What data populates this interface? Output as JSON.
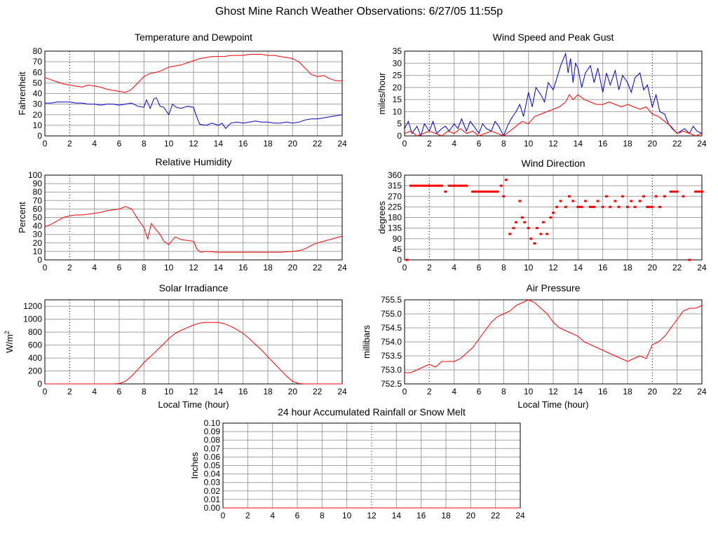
{
  "page_title": "Ghost Mine Ranch Weather Observations: 6/27/05 11:55p",
  "colors": {
    "red": "#ff0000",
    "blue": "#0000cc",
    "grid": "#a0a0a0",
    "axis": "#000000"
  },
  "chart_data": [
    {
      "id": "temp",
      "type": "line",
      "title": "Temperature and Dewpoint",
      "ylabel": "Fahrenheit",
      "xlabel": "",
      "xlim": [
        0,
        24
      ],
      "ylim": [
        0,
        80
      ],
      "xticks": [
        0,
        2,
        4,
        6,
        8,
        10,
        12,
        14,
        16,
        18,
        20,
        22,
        24
      ],
      "yticks": [
        0,
        10,
        20,
        30,
        40,
        50,
        60,
        70,
        80
      ],
      "grid": true,
      "series": [
        {
          "color": "#ff0000",
          "x": [
            0,
            0.5,
            1,
            1.5,
            2,
            2.5,
            3,
            3.5,
            4,
            4.5,
            5,
            5.5,
            6,
            6.5,
            7,
            7.5,
            8,
            8.5,
            9,
            9.5,
            10,
            10.5,
            11,
            11.5,
            12,
            12.5,
            13,
            13.5,
            14,
            14.5,
            15,
            15.5,
            16,
            16.5,
            17,
            17.5,
            18,
            18.5,
            19,
            19.5,
            20,
            20.5,
            21,
            21.5,
            22,
            22.5,
            23,
            23.5,
            24
          ],
          "y": [
            55,
            53,
            51,
            49,
            48,
            47,
            46,
            48,
            47,
            46,
            44,
            43,
            42,
            41,
            44,
            50,
            56,
            59,
            60,
            62,
            65,
            66,
            67,
            69,
            71,
            73,
            74,
            75,
            75,
            75,
            76,
            76,
            76,
            77,
            77,
            77,
            76,
            76,
            75,
            74,
            73,
            70,
            64,
            58,
            56,
            57,
            54,
            52,
            52
          ]
        },
        {
          "color": "#0000cc",
          "x": [
            0,
            0.5,
            1,
            1.5,
            2,
            2.5,
            3,
            3.5,
            4,
            4.5,
            5,
            5.5,
            6,
            6.5,
            7,
            7.5,
            8,
            8.2,
            8.5,
            8.8,
            9,
            9.3,
            9.6,
            10,
            10.3,
            10.6,
            11,
            11.5,
            12,
            12.2,
            12.5,
            13,
            13.5,
            14,
            14.3,
            14.6,
            15,
            15.5,
            16,
            16.5,
            17,
            17.5,
            18,
            18.5,
            19,
            19.5,
            20,
            20.5,
            21,
            21.5,
            22,
            22.5,
            23,
            23.5,
            24
          ],
          "y": [
            31,
            31,
            32,
            32,
            32,
            31,
            31,
            30,
            30,
            29,
            30,
            30,
            29,
            30,
            31,
            28,
            27,
            34,
            26,
            35,
            36,
            28,
            27,
            20,
            30,
            27,
            26,
            28,
            27,
            20,
            11,
            10,
            12,
            10,
            12,
            7,
            12,
            13,
            12,
            13,
            14,
            13,
            13,
            12,
            12,
            13,
            12,
            13,
            15,
            16,
            16,
            17,
            18,
            19,
            20
          ]
        }
      ]
    },
    {
      "id": "wind",
      "type": "line",
      "title": "Wind Speed and Peak Gust",
      "ylabel": "miles/hour",
      "xlabel": "",
      "xlim": [
        0,
        24
      ],
      "ylim": [
        0,
        35
      ],
      "xticks": [
        0,
        2,
        4,
        6,
        8,
        10,
        12,
        14,
        16,
        18,
        20,
        22,
        24
      ],
      "yticks": [
        0,
        5,
        10,
        15,
        20,
        25,
        30,
        35
      ],
      "grid": true,
      "series": [
        {
          "color": "#0000cc",
          "x": [
            0,
            0.3,
            0.6,
            1,
            1.3,
            1.6,
            2,
            2.3,
            2.6,
            3,
            3.3,
            3.6,
            4,
            4.3,
            4.6,
            5,
            5.3,
            5.6,
            6,
            6.3,
            6.6,
            7,
            7.3,
            7.6,
            8,
            8.3,
            8.6,
            9,
            9.3,
            9.6,
            10,
            10.3,
            10.6,
            11,
            11.3,
            11.6,
            12,
            12.3,
            12.6,
            13,
            13.2,
            13.4,
            13.6,
            13.8,
            14,
            14.3,
            14.6,
            15,
            15.3,
            15.6,
            16,
            16.3,
            16.6,
            17,
            17.3,
            17.6,
            18,
            18.3,
            18.6,
            19,
            19.3,
            19.6,
            20,
            20.3,
            20.6,
            21,
            21.3,
            21.6,
            22,
            22.3,
            22.6,
            23,
            23.3,
            23.6,
            24
          ],
          "y": [
            3,
            6,
            1,
            4,
            0,
            5,
            2,
            6,
            1,
            3,
            4,
            2,
            5,
            3,
            7,
            2,
            6,
            4,
            1,
            5,
            3,
            2,
            6,
            4,
            0,
            4,
            7,
            10,
            13,
            8,
            18,
            12,
            20,
            17,
            14,
            22,
            19,
            24,
            29,
            34,
            26,
            32,
            22,
            30,
            28,
            20,
            26,
            29,
            22,
            28,
            18,
            26,
            21,
            27,
            19,
            25,
            22,
            18,
            24,
            26,
            19,
            21,
            12,
            17,
            10,
            9,
            5,
            3,
            1,
            2,
            3,
            1,
            4,
            2,
            1
          ]
        },
        {
          "color": "#ff0000",
          "x": [
            0,
            0.5,
            1,
            1.5,
            2,
            2.5,
            3,
            3.5,
            4,
            4.5,
            5,
            5.5,
            6,
            6.5,
            7,
            7.5,
            8,
            8.5,
            9,
            9.5,
            10,
            10.5,
            11,
            11.5,
            12,
            12.5,
            13,
            13.3,
            13.6,
            14,
            14.5,
            15,
            15.5,
            16,
            16.5,
            17,
            17.5,
            18,
            18.5,
            19,
            19.5,
            20,
            20.5,
            21,
            21.5,
            22,
            22.5,
            23,
            23.5,
            24
          ],
          "y": [
            1,
            2,
            0,
            1,
            2,
            1,
            0,
            2,
            1,
            3,
            1,
            2,
            0,
            1,
            2,
            1,
            0,
            2,
            4,
            6,
            5,
            8,
            9,
            10,
            11,
            12,
            14,
            17,
            15,
            17,
            15,
            14,
            13,
            13,
            14,
            13,
            12,
            13,
            12,
            11,
            12,
            9,
            8,
            6,
            4,
            1,
            2,
            1,
            0,
            1
          ]
        }
      ]
    },
    {
      "id": "rh",
      "type": "line",
      "title": "Relative Humidity",
      "ylabel": "Percent",
      "xlabel": "",
      "xlim": [
        0,
        24
      ],
      "ylim": [
        0,
        100
      ],
      "xticks": [
        0,
        2,
        4,
        6,
        8,
        10,
        12,
        14,
        16,
        18,
        20,
        22,
        24
      ],
      "yticks": [
        0,
        10,
        20,
        30,
        40,
        50,
        60,
        70,
        80,
        90,
        100
      ],
      "grid": true,
      "series": [
        {
          "color": "#ff0000",
          "x": [
            0,
            0.5,
            1,
            1.5,
            2,
            2.5,
            3,
            3.5,
            4,
            4.5,
            5,
            5.5,
            6,
            6.5,
            7,
            7.5,
            8,
            8.3,
            8.6,
            9,
            9.3,
            9.6,
            10,
            10.5,
            11,
            11.5,
            12,
            12.3,
            12.6,
            13,
            14,
            15,
            16,
            17,
            18,
            19,
            20,
            20.5,
            21,
            21.5,
            22,
            22.5,
            23,
            23.5,
            24
          ],
          "y": [
            39,
            42,
            46,
            50,
            52,
            53,
            53,
            54,
            55,
            56,
            58,
            59,
            60,
            63,
            60,
            48,
            38,
            25,
            43,
            35,
            30,
            22,
            18,
            27,
            24,
            23,
            22,
            12,
            9,
            10,
            9,
            9,
            9,
            9,
            9,
            9,
            10,
            11,
            13,
            17,
            20,
            22,
            24,
            26,
            28
          ]
        }
      ]
    },
    {
      "id": "wdir",
      "type": "scatter",
      "title": "Wind Direction",
      "ylabel": "degrees",
      "xlabel": "",
      "xlim": [
        0,
        24
      ],
      "ylim": [
        0,
        360
      ],
      "xticks": [
        0,
        2,
        4,
        6,
        8,
        10,
        12,
        14,
        16,
        18,
        20,
        22,
        24
      ],
      "yticks": [
        0,
        45,
        90,
        135,
        180,
        225,
        270,
        315,
        360
      ],
      "grid": true,
      "series": [
        {
          "color": "#ff0000",
          "x": [
            0.2,
            0.5,
            1,
            1.5,
            2,
            2.5,
            3,
            3.3,
            3.6,
            4,
            4.5,
            5,
            5.5,
            6,
            6.5,
            7,
            7.5,
            7.8,
            8,
            8.2,
            8.5,
            8.8,
            9,
            9.3,
            9.5,
            9.7,
            10,
            10.2,
            10.5,
            10.7,
            11,
            11.2,
            11.5,
            11.8,
            12,
            12.3,
            12.6,
            13,
            13.3,
            13.6,
            14,
            14.3,
            14.6,
            15,
            15.3,
            15.6,
            16,
            16.3,
            16.6,
            17,
            17.3,
            17.6,
            18,
            18.3,
            18.6,
            19,
            19.3,
            19.6,
            20,
            20.3,
            20.6,
            21,
            21.5,
            22,
            22.5,
            23,
            23.5,
            24
          ],
          "y": [
            0,
            315,
            315,
            315,
            315,
            315,
            315,
            290,
            315,
            315,
            315,
            315,
            290,
            290,
            290,
            290,
            290,
            315,
            270,
            340,
            110,
            135,
            160,
            250,
            180,
            160,
            135,
            90,
            70,
            135,
            110,
            160,
            110,
            180,
            200,
            225,
            250,
            225,
            270,
            250,
            225,
            225,
            250,
            225,
            225,
            250,
            225,
            270,
            225,
            250,
            225,
            270,
            225,
            250,
            225,
            250,
            270,
            225,
            225,
            270,
            225,
            270,
            290,
            290,
            270,
            0,
            290,
            290
          ]
        }
      ]
    },
    {
      "id": "solar",
      "type": "line",
      "title": "Solar Irradiance",
      "ylabel": "W/m2",
      "xlabel": "Local Time (hour)",
      "xlim": [
        0,
        24
      ],
      "ylim": [
        0,
        1300
      ],
      "xticks": [
        0,
        2,
        4,
        6,
        8,
        10,
        12,
        14,
        16,
        18,
        20,
        22,
        24
      ],
      "yticks": [
        0,
        200,
        400,
        600,
        800,
        1000,
        1200
      ],
      "grid": true,
      "series": [
        {
          "color": "#ff0000",
          "x": [
            0,
            2,
            4,
            5.5,
            6,
            6.5,
            7,
            7.5,
            8,
            8.5,
            9,
            9.5,
            10,
            10.5,
            11,
            11.5,
            12,
            12.5,
            13,
            13.5,
            14,
            14.5,
            15,
            15.5,
            16,
            16.5,
            17,
            17.5,
            18,
            18.5,
            19,
            19.5,
            20,
            20.5,
            21,
            22,
            24
          ],
          "y": [
            0,
            0,
            0,
            0,
            5,
            40,
            120,
            220,
            330,
            420,
            510,
            600,
            700,
            780,
            830,
            870,
            910,
            940,
            950,
            950,
            950,
            930,
            890,
            840,
            780,
            700,
            610,
            520,
            420,
            320,
            220,
            120,
            40,
            5,
            0,
            0,
            0
          ]
        }
      ]
    },
    {
      "id": "pressure",
      "type": "line",
      "title": "Air Pressure",
      "ylabel": "millibars",
      "xlabel": "Local Time (hour)",
      "xlim": [
        0,
        24
      ],
      "ylim": [
        752.5,
        755.5
      ],
      "xticks": [
        0,
        2,
        4,
        6,
        8,
        10,
        12,
        14,
        16,
        18,
        20,
        22,
        24
      ],
      "yticks": [
        752.5,
        753.0,
        753.5,
        754.0,
        754.5,
        755.0,
        755.5
      ],
      "ytick_labels": [
        "752.5",
        "753.0",
        "753.5",
        "754.0",
        "754.5",
        "755.0",
        "755.5"
      ],
      "grid": true,
      "series": [
        {
          "color": "#ff0000",
          "x": [
            0,
            0.5,
            1,
            1.5,
            2,
            2.5,
            3,
            3.5,
            4,
            4.5,
            5,
            5.5,
            6,
            6.5,
            7,
            7.5,
            8,
            8.5,
            9,
            9.5,
            10,
            10.5,
            11,
            11.5,
            12,
            12.5,
            13,
            13.5,
            14,
            14.5,
            15,
            15.5,
            16,
            16.5,
            17,
            17.5,
            18,
            18.5,
            19,
            19.5,
            20,
            20.5,
            21,
            21.5,
            22,
            22.5,
            23,
            23.5,
            24
          ],
          "y": [
            752.9,
            752.9,
            753.0,
            753.1,
            753.2,
            753.1,
            753.3,
            753.3,
            753.3,
            753.4,
            753.6,
            753.8,
            754.1,
            754.4,
            754.7,
            754.9,
            755.0,
            755.1,
            755.3,
            755.4,
            755.5,
            755.4,
            755.2,
            755.0,
            754.7,
            754.5,
            754.4,
            754.3,
            754.2,
            754.0,
            753.9,
            753.8,
            753.7,
            753.6,
            753.5,
            753.4,
            753.3,
            753.4,
            753.5,
            753.4,
            753.9,
            754.0,
            754.2,
            754.5,
            754.8,
            755.1,
            755.2,
            755.2,
            755.3
          ]
        }
      ]
    },
    {
      "id": "rain",
      "type": "line",
      "title": "24 hour Accumulated Rainfall or Snow Melt",
      "ylabel": "Inches",
      "xlabel": "",
      "xlim": [
        0,
        24
      ],
      "ylim": [
        0,
        0.1
      ],
      "xticks": [
        0,
        2,
        4,
        6,
        8,
        10,
        12,
        14,
        16,
        18,
        20,
        22,
        24
      ],
      "yticks": [
        0,
        0.01,
        0.02,
        0.03,
        0.04,
        0.05,
        0.06,
        0.07,
        0.08,
        0.09,
        0.1
      ],
      "ytick_labels": [
        "0.00",
        "0.01",
        "0.02",
        "0.03",
        "0.04",
        "0.05",
        "0.06",
        "0.07",
        "0.08",
        "0.09",
        "0.10"
      ],
      "grid": true,
      "series": [
        {
          "color": "#ff0000",
          "x": [
            0,
            24
          ],
          "y": [
            0,
            0
          ]
        }
      ]
    }
  ]
}
